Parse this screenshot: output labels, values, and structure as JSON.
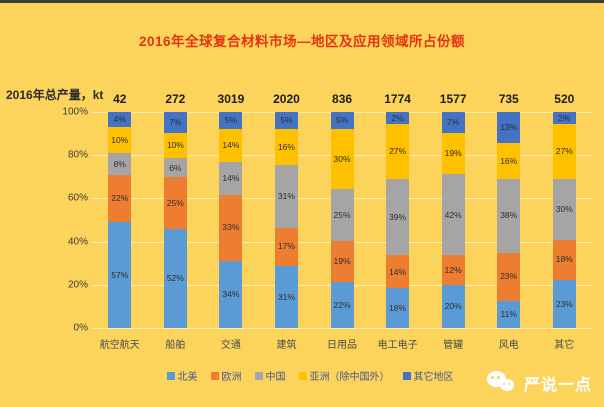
{
  "page": {
    "background": "#FCD45C",
    "top_strip_color": "#3e3e36"
  },
  "title": {
    "text": "2016年全球复合材料市场—地区及应用领域所占份额",
    "color": "#E5330E"
  },
  "y_axis_title": "2016年总产量，kt",
  "chart_data": {
    "type": "bar",
    "subtype": "stacked-100-percent",
    "title": "2016年全球复合材料市场—地区及应用领域所占份额",
    "ylabel": "2016年总产量，kt",
    "y_ticks": [
      "100%",
      "80%",
      "60%",
      "40%",
      "20%",
      "0%"
    ],
    "ylim": [
      0,
      100
    ],
    "grid": true,
    "legend_position": "bottom",
    "categories": [
      "航空航天",
      "船舶",
      "交通",
      "建筑",
      "日用品",
      "电工电子",
      "管罐",
      "风电",
      "其它"
    ],
    "totals_kt": [
      42,
      272,
      3019,
      2020,
      836,
      1774,
      1577,
      735,
      520
    ],
    "series": [
      {
        "name": "北美",
        "color": "#5B9BD5",
        "values": [
          57,
          52,
          34,
          31,
          22,
          18,
          20,
          11,
          23
        ]
      },
      {
        "name": "欧洲",
        "color": "#ED7D31",
        "values": [
          22,
          25,
          33,
          17,
          19,
          14,
          12,
          23,
          18
        ]
      },
      {
        "name": "中国",
        "color": "#A5A5A5",
        "values": [
          8,
          6,
          14,
          31,
          25,
          39,
          42,
          38,
          30
        ]
      },
      {
        "name": "亚洲（除中国外）",
        "color": "#FFC000",
        "values": [
          10,
          10,
          14,
          16,
          30,
          27,
          19,
          16,
          27
        ]
      },
      {
        "name": "其它地区",
        "color": "#4472C4",
        "values": [
          4,
          7,
          5,
          5,
          5,
          2,
          7,
          13,
          2
        ]
      }
    ]
  },
  "footer": {
    "brand_name": "严说一点",
    "brand_icon": "wechat-icon"
  }
}
